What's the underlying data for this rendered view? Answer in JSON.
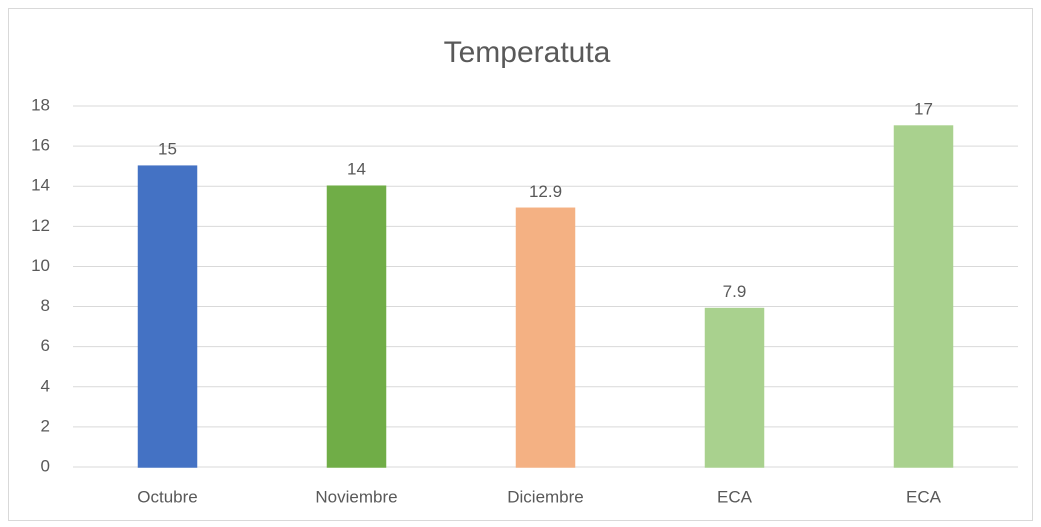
{
  "chart_data": {
    "type": "bar",
    "title": "Temperatuta",
    "categories": [
      "Octubre",
      "Noviembre",
      "Diciembre",
      "ECA",
      "ECA"
    ],
    "values": [
      15,
      14,
      12.9,
      7.9,
      17
    ],
    "colors": [
      "#4472c4",
      "#70ad47",
      "#f4b183",
      "#a9d18e",
      "#a9d18e"
    ],
    "ylim": [
      0,
      18
    ],
    "yticks": [
      0,
      2,
      4,
      6,
      8,
      10,
      12,
      14,
      16,
      18
    ],
    "grid": true
  }
}
